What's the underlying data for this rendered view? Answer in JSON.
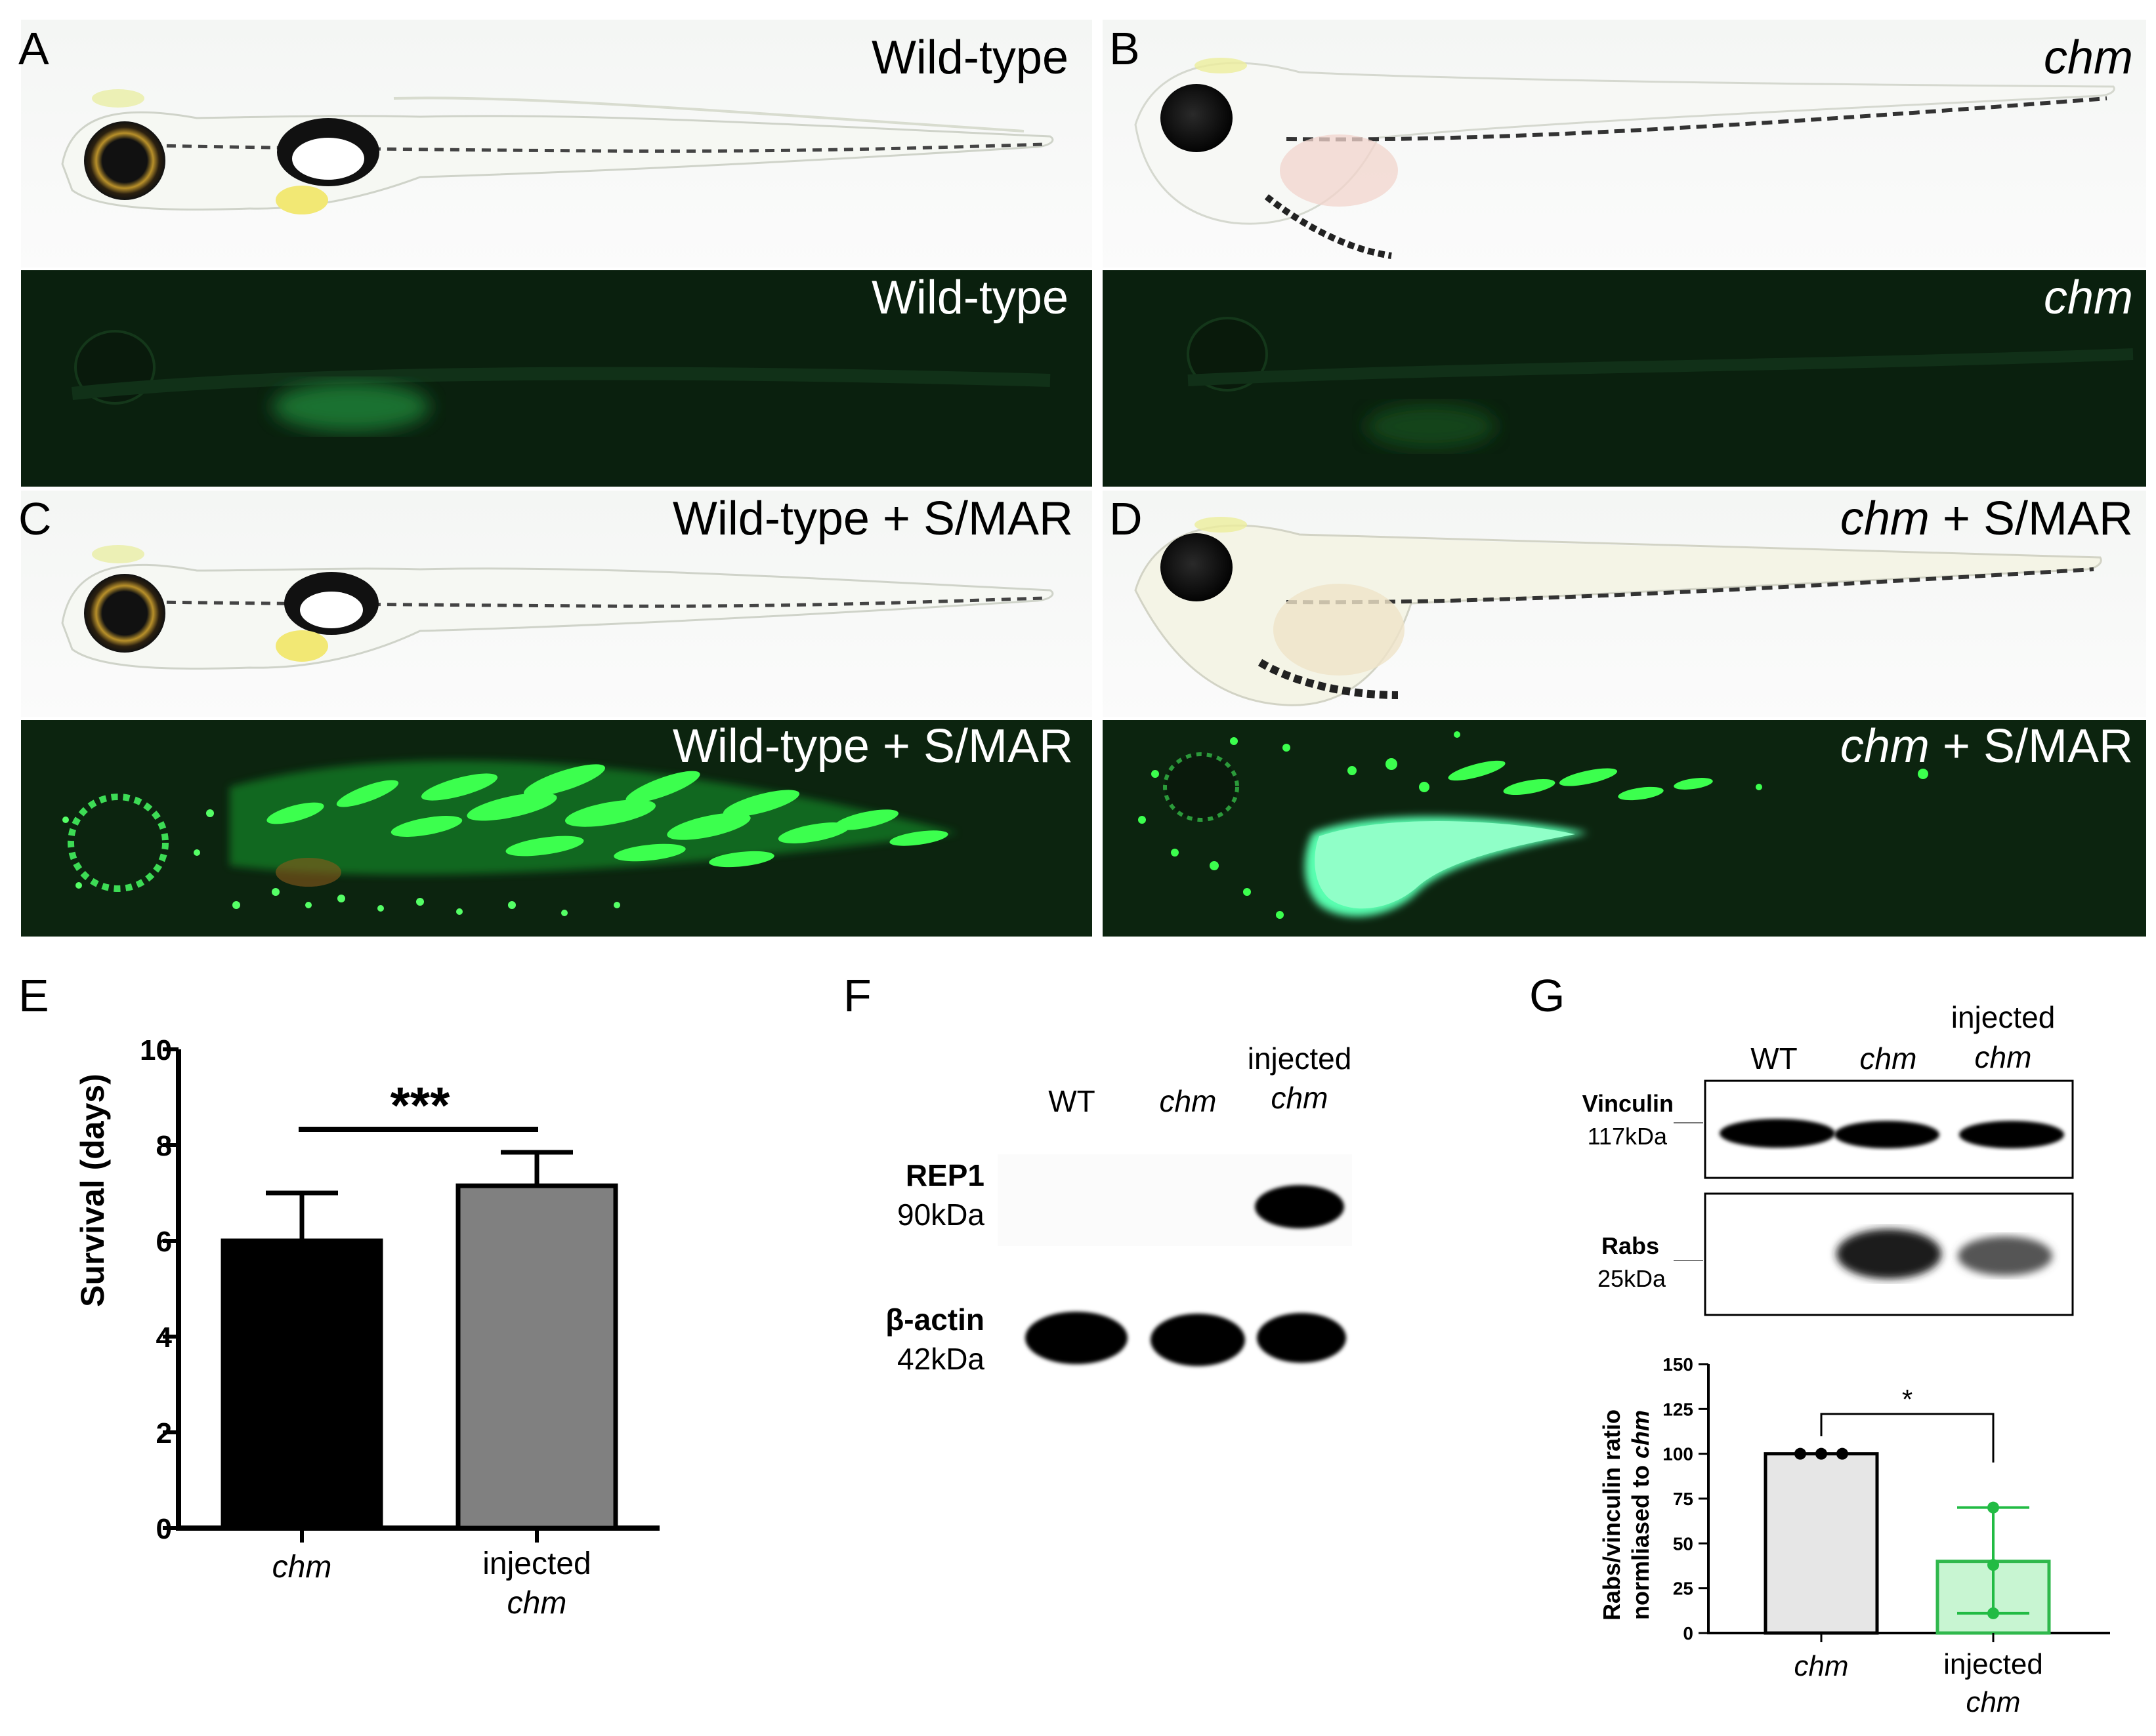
{
  "panels": {
    "A": {
      "letter": "A",
      "label_bright": "Wild-type",
      "label_fluor": "Wild-type"
    },
    "B": {
      "letter": "B",
      "label_bright": "chm",
      "label_fluor": "chm"
    },
    "C": {
      "letter": "C",
      "label_bright": "Wild-type + S/MAR",
      "label_fluor": "Wild-type + S/MAR"
    },
    "D": {
      "letter": "D",
      "label_bright_a": "chm",
      "label_bright_b": " + S/MAR",
      "label_fluor_a": "chm",
      "label_fluor_b": " + S/MAR"
    }
  },
  "panel_E": {
    "letter": "E",
    "ylabel": "Survival (days)",
    "significance": "***",
    "x_labels": [
      {
        "line1": "chm",
        "line2": ""
      },
      {
        "line1": "injected",
        "line2": "chm"
      }
    ],
    "yticks": [
      "0",
      "2",
      "4",
      "6",
      "8",
      "10"
    ],
    "chart_data": {
      "type": "bar",
      "categories": [
        "chm",
        "injected chm"
      ],
      "values": [
        6.0,
        7.15
      ],
      "errors": [
        1.0,
        0.7
      ],
      "colors": [
        "#000000",
        "#808080"
      ],
      "ylabel": "Survival (days)",
      "ylim": [
        0,
        10
      ]
    }
  },
  "panel_F": {
    "letter": "F",
    "lanes": [
      "WT",
      "chm"
    ],
    "lane3_line1": "injected",
    "lane3_line2": "chm",
    "band1_name": "REP1",
    "band1_size": "90kDa",
    "band2_name": "β-actin",
    "band2_size": "42kDa"
  },
  "panel_G": {
    "letter": "G",
    "lanes": [
      "WT",
      "chm"
    ],
    "lane3_line1": "injected",
    "lane3_line2": "chm",
    "band1_name": "Vinculin",
    "band1_size": "117kDa",
    "band2_name": "Rabs",
    "band2_size": "25kDa",
    "ylabel_line1": "Rabs/vinculin ratio",
    "ylabel_line2_a": "normliased to ",
    "ylabel_line2_b": "chm",
    "significance": "*",
    "x_labels": [
      {
        "line1": "chm",
        "line2": ""
      },
      {
        "line1": "injected",
        "line2": "chm"
      }
    ],
    "yticks": [
      "0",
      "25",
      "50",
      "75",
      "100",
      "125",
      "150"
    ],
    "chart_data": {
      "type": "bar",
      "categories": [
        "chm",
        "injected chm"
      ],
      "values": [
        100,
        40
      ],
      "error_low": [
        100,
        11
      ],
      "error_high": [
        100,
        70
      ],
      "points": [
        [
          100,
          100,
          100
        ],
        [
          11,
          38,
          70
        ]
      ],
      "colors": [
        "#e6e6e6",
        "#c8f5d2"
      ],
      "point_colors": [
        "#000000",
        "#22bb44"
      ],
      "ylim": [
        0,
        150
      ]
    }
  }
}
